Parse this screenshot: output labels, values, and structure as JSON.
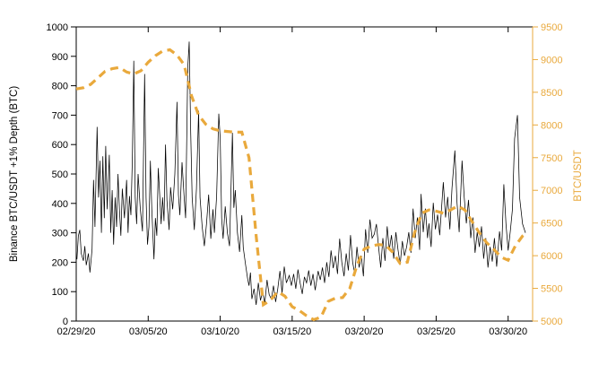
{
  "figure": {
    "background": "#ffffff",
    "axis_color": "#000000",
    "accent_color": "#E9A93C"
  },
  "chart_data": {
    "type": "line",
    "title": "",
    "legend": "none",
    "grid": false,
    "x_axis": {
      "label": "",
      "tick_labels": [
        "02/29/20",
        "03/05/20",
        "03/10/20",
        "03/15/20",
        "03/20/20",
        "03/25/20",
        "03/30/20"
      ],
      "tick_days": [
        0,
        5,
        10,
        15,
        20,
        25,
        30
      ],
      "range_days": [
        0,
        31.7
      ]
    },
    "left_y_axis": {
      "label": "Binance BTC/USDT +1% Depth (BTC)",
      "range": [
        0,
        1000
      ],
      "ticks": [
        0,
        100,
        200,
        300,
        400,
        500,
        600,
        700,
        800,
        900,
        1000
      ],
      "color": "#000000"
    },
    "right_y_axis": {
      "label": "BTC/USDT",
      "range": [
        5000,
        9500
      ],
      "ticks": [
        5000,
        5500,
        6000,
        6500,
        7000,
        7500,
        8000,
        8500,
        9000,
        9500
      ],
      "color": "#E9A93C"
    },
    "series": [
      {
        "name": "Binance BTC/USDT +1% Depth (BTC)",
        "axis": "left",
        "style": "solid",
        "color": "#000000",
        "line_width": 0.75,
        "points": [
          [
            0.05,
            210
          ],
          [
            0.15,
            290
          ],
          [
            0.25,
            310
          ],
          [
            0.35,
            230
          ],
          [
            0.5,
            205
          ],
          [
            0.6,
            255
          ],
          [
            0.7,
            190
          ],
          [
            0.85,
            230
          ],
          [
            0.95,
            165
          ],
          [
            1.1,
            245
          ],
          [
            1.2,
            480
          ],
          [
            1.3,
            320
          ],
          [
            1.45,
            660
          ],
          [
            1.55,
            420
          ],
          [
            1.65,
            545
          ],
          [
            1.75,
            300
          ],
          [
            1.85,
            560
          ],
          [
            1.95,
            350
          ],
          [
            2.05,
            595
          ],
          [
            2.15,
            380
          ],
          [
            2.3,
            565
          ],
          [
            2.4,
            300
          ],
          [
            2.5,
            445
          ],
          [
            2.6,
            260
          ],
          [
            2.7,
            420
          ],
          [
            2.8,
            320
          ],
          [
            2.9,
            500
          ],
          [
            3.0,
            380
          ],
          [
            3.1,
            290
          ],
          [
            3.2,
            450
          ],
          [
            3.35,
            350
          ],
          [
            3.5,
            480
          ],
          [
            3.6,
            300
          ],
          [
            3.7,
            425
          ],
          [
            3.8,
            360
          ],
          [
            3.9,
            550
          ],
          [
            4.0,
            885
          ],
          [
            4.1,
            420
          ],
          [
            4.2,
            330
          ],
          [
            4.3,
            500
          ],
          [
            4.45,
            380
          ],
          [
            4.6,
            305
          ],
          [
            4.75,
            840
          ],
          [
            4.85,
            420
          ],
          [
            4.95,
            260
          ],
          [
            5.05,
            320
          ],
          [
            5.15,
            545
          ],
          [
            5.25,
            380
          ],
          [
            5.4,
            210
          ],
          [
            5.5,
            350
          ],
          [
            5.6,
            290
          ],
          [
            5.7,
            520
          ],
          [
            5.8,
            430
          ],
          [
            5.9,
            330
          ],
          [
            6.0,
            420
          ],
          [
            6.1,
            340
          ],
          [
            6.2,
            600
          ],
          [
            6.3,
            410
          ],
          [
            6.45,
            310
          ],
          [
            6.55,
            455
          ],
          [
            6.7,
            380
          ],
          [
            6.85,
            500
          ],
          [
            7.0,
            745
          ],
          [
            7.1,
            430
          ],
          [
            7.2,
            360
          ],
          [
            7.35,
            540
          ],
          [
            7.5,
            420
          ],
          [
            7.6,
            350
          ],
          [
            7.75,
            860
          ],
          [
            7.85,
            950
          ],
          [
            7.95,
            640
          ],
          [
            8.05,
            420
          ],
          [
            8.2,
            310
          ],
          [
            8.35,
            450
          ],
          [
            8.5,
            715
          ],
          [
            8.6,
            420
          ],
          [
            8.75,
            320
          ],
          [
            8.9,
            255
          ],
          [
            9.05,
            330
          ],
          [
            9.2,
            430
          ],
          [
            9.35,
            280
          ],
          [
            9.5,
            380
          ],
          [
            9.6,
            300
          ],
          [
            9.75,
            425
          ],
          [
            9.9,
            705
          ],
          [
            10.0,
            620
          ],
          [
            10.1,
            350
          ],
          [
            10.2,
            280
          ],
          [
            10.35,
            390
          ],
          [
            10.5,
            300
          ],
          [
            10.65,
            255
          ],
          [
            10.85,
            640
          ],
          [
            10.95,
            385
          ],
          [
            11.05,
            445
          ],
          [
            11.2,
            300
          ],
          [
            11.35,
            235
          ],
          [
            11.5,
            360
          ],
          [
            11.6,
            250
          ],
          [
            11.75,
            195
          ],
          [
            11.9,
            145
          ],
          [
            12.0,
            120
          ],
          [
            12.1,
            165
          ],
          [
            12.2,
            75
          ],
          [
            12.35,
            110
          ],
          [
            12.5,
            55
          ],
          [
            12.65,
            130
          ],
          [
            12.8,
            70
          ],
          [
            12.95,
            100
          ],
          [
            13.1,
            60
          ],
          [
            13.25,
            140
          ],
          [
            13.4,
            90
          ],
          [
            13.55,
            75
          ],
          [
            13.7,
            120
          ],
          [
            13.85,
            65
          ],
          [
            14.0,
            110
          ],
          [
            14.15,
            170
          ],
          [
            14.3,
            95
          ],
          [
            14.45,
            185
          ],
          [
            14.6,
            130
          ],
          [
            14.8,
            155
          ],
          [
            14.95,
            120
          ],
          [
            15.1,
            160
          ],
          [
            15.25,
            110
          ],
          [
            15.4,
            175
          ],
          [
            15.55,
            130
          ],
          [
            15.7,
            92
          ],
          [
            15.85,
            150
          ],
          [
            16.0,
            130
          ],
          [
            16.15,
            172
          ],
          [
            16.3,
            120
          ],
          [
            16.45,
            160
          ],
          [
            16.6,
            105
          ],
          [
            16.8,
            170
          ],
          [
            16.95,
            140
          ],
          [
            17.1,
            182
          ],
          [
            17.25,
            130
          ],
          [
            17.4,
            200
          ],
          [
            17.55,
            150
          ],
          [
            17.7,
            240
          ],
          [
            17.85,
            180
          ],
          [
            18.0,
            222
          ],
          [
            18.15,
            160
          ],
          [
            18.3,
            280
          ],
          [
            18.45,
            200
          ],
          [
            18.6,
            152
          ],
          [
            18.75,
            230
          ],
          [
            18.9,
            172
          ],
          [
            19.05,
            292
          ],
          [
            19.2,
            200
          ],
          [
            19.35,
            160
          ],
          [
            19.5,
            252
          ],
          [
            19.65,
            182
          ],
          [
            19.8,
            222
          ],
          [
            19.95,
            152
          ],
          [
            20.1,
            312
          ],
          [
            20.25,
            232
          ],
          [
            20.4,
            345
          ],
          [
            20.55,
            282
          ],
          [
            20.7,
            295
          ],
          [
            20.85,
            330
          ],
          [
            21.0,
            252
          ],
          [
            21.15,
            182
          ],
          [
            21.3,
            282
          ],
          [
            21.45,
            205
          ],
          [
            21.6,
            322
          ],
          [
            21.75,
            242
          ],
          [
            21.9,
            292
          ],
          [
            22.05,
            212
          ],
          [
            22.2,
            302
          ],
          [
            22.35,
            242
          ],
          [
            22.5,
            192
          ],
          [
            22.65,
            272
          ],
          [
            22.8,
            222
          ],
          [
            22.95,
            252
          ],
          [
            23.1,
            302
          ],
          [
            23.25,
            232
          ],
          [
            23.4,
            382
          ],
          [
            23.55,
            282
          ],
          [
            23.7,
            352
          ],
          [
            23.85,
            242
          ],
          [
            23.95,
            432
          ],
          [
            24.1,
            302
          ],
          [
            24.25,
            382
          ],
          [
            24.4,
            282
          ],
          [
            24.5,
            332
          ],
          [
            24.65,
            252
          ],
          [
            24.8,
            402
          ],
          [
            24.95,
            312
          ],
          [
            25.1,
            362
          ],
          [
            25.25,
            292
          ],
          [
            25.5,
            472
          ],
          [
            25.65,
            352
          ],
          [
            25.8,
            422
          ],
          [
            25.95,
            312
          ],
          [
            26.1,
            452
          ],
          [
            26.3,
            580
          ],
          [
            26.45,
            402
          ],
          [
            26.6,
            302
          ],
          [
            26.8,
            545
          ],
          [
            26.95,
            422
          ],
          [
            27.1,
            332
          ],
          [
            27.25,
            412
          ],
          [
            27.4,
            282
          ],
          [
            27.55,
            352
          ],
          [
            27.7,
            232
          ],
          [
            27.85,
            302
          ],
          [
            28.0,
            252
          ],
          [
            28.15,
            322
          ],
          [
            28.3,
            212
          ],
          [
            28.45,
            282
          ],
          [
            28.6,
            182
          ],
          [
            28.75,
            252
          ],
          [
            28.9,
            202
          ],
          [
            29.05,
            282
          ],
          [
            29.2,
            185
          ],
          [
            29.4,
            305
          ],
          [
            29.55,
            240
          ],
          [
            29.7,
            465
          ],
          [
            29.85,
            330
          ],
          [
            30.0,
            240
          ],
          [
            30.15,
            305
          ],
          [
            30.3,
            380
          ],
          [
            30.45,
            620
          ],
          [
            30.65,
            700
          ],
          [
            30.8,
            420
          ],
          [
            31.0,
            330
          ],
          [
            31.2,
            300
          ]
        ]
      },
      {
        "name": "BTC/USDT",
        "axis": "right",
        "style": "dashed",
        "color": "#E9A93C",
        "line_width": 3.2,
        "points": [
          [
            0,
            8550
          ],
          [
            0.5,
            8570
          ],
          [
            1,
            8620
          ],
          [
            1.5,
            8720
          ],
          [
            2,
            8820
          ],
          [
            2.5,
            8860
          ],
          [
            3,
            8880
          ],
          [
            3.5,
            8810
          ],
          [
            4,
            8780
          ],
          [
            4.5,
            8830
          ],
          [
            5,
            8960
          ],
          [
            5.5,
            9060
          ],
          [
            6,
            9130
          ],
          [
            6.5,
            9150
          ],
          [
            7,
            9070
          ],
          [
            7.5,
            8920
          ],
          [
            8,
            8450
          ],
          [
            8.5,
            8150
          ],
          [
            9,
            8010
          ],
          [
            9.5,
            7940
          ],
          [
            10,
            7910
          ],
          [
            10.5,
            7900
          ],
          [
            11,
            7890
          ],
          [
            11.5,
            7890
          ],
          [
            12,
            7500
          ],
          [
            12.5,
            6300
          ],
          [
            13,
            5250
          ],
          [
            13.5,
            5320
          ],
          [
            14,
            5450
          ],
          [
            14.5,
            5380
          ],
          [
            15,
            5220
          ],
          [
            15.5,
            5160
          ],
          [
            16,
            5080
          ],
          [
            16.5,
            5020
          ],
          [
            17,
            5060
          ],
          [
            17.5,
            5300
          ],
          [
            18,
            5350
          ],
          [
            18.5,
            5360
          ],
          [
            19,
            5500
          ],
          [
            19.5,
            5850
          ],
          [
            20,
            6100
          ],
          [
            20.5,
            6150
          ],
          [
            21,
            6170
          ],
          [
            21.5,
            6160
          ],
          [
            22,
            6050
          ],
          [
            22.5,
            5880
          ],
          [
            23,
            5900
          ],
          [
            23.5,
            6350
          ],
          [
            24,
            6650
          ],
          [
            24.5,
            6700
          ],
          [
            25,
            6680
          ],
          [
            25.5,
            6650
          ],
          [
            26,
            6700
          ],
          [
            26.5,
            6760
          ],
          [
            27,
            6700
          ],
          [
            27.5,
            6520
          ],
          [
            28,
            6350
          ],
          [
            28.5,
            6200
          ],
          [
            29,
            6100
          ],
          [
            29.5,
            5980
          ],
          [
            30,
            5930
          ],
          [
            30.5,
            6150
          ],
          [
            31,
            6300
          ],
          [
            31.3,
            6350
          ]
        ]
      }
    ]
  }
}
